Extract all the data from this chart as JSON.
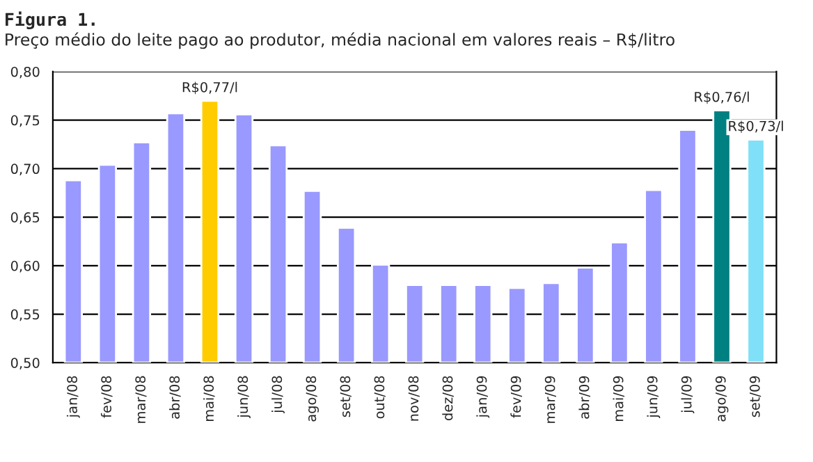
{
  "chart_data": {
    "type": "bar",
    "title": "Figura 1.",
    "subtitle": "Preço médio do leite pago ao produtor, média nacional em valores reais – R$/litro",
    "categories": [
      "jan/08",
      "fev/08",
      "mar/08",
      "abr/08",
      "mai/08",
      "jun/08",
      "jul/08",
      "ago/08",
      "set/08",
      "out/08",
      "nov/08",
      "dez/08",
      "jan/09",
      "fev/09",
      "mar/09",
      "abr/09",
      "mai/09",
      "jun/09",
      "jul/09",
      "ago/09",
      "set/09"
    ],
    "values": [
      0.688,
      0.704,
      0.727,
      0.757,
      0.77,
      0.756,
      0.724,
      0.677,
      0.639,
      0.601,
      0.58,
      0.58,
      0.58,
      0.577,
      0.582,
      0.598,
      0.624,
      0.678,
      0.74,
      0.76,
      0.73
    ],
    "colors": [
      "#9999ff",
      "#9999ff",
      "#9999ff",
      "#9999ff",
      "#ffcc00",
      "#9999ff",
      "#9999ff",
      "#9999ff",
      "#9999ff",
      "#9999ff",
      "#9999ff",
      "#9999ff",
      "#9999ff",
      "#9999ff",
      "#9999ff",
      "#9999ff",
      "#9999ff",
      "#9999ff",
      "#9999ff",
      "#008080",
      "#80e0f8"
    ],
    "value_labels": [
      null,
      null,
      null,
      null,
      "R$0,77/l",
      null,
      null,
      null,
      null,
      null,
      null,
      null,
      null,
      null,
      null,
      null,
      null,
      null,
      null,
      "R$0,76/l",
      "R$0,73/l"
    ],
    "ylim": [
      0.5,
      0.8
    ],
    "yticks": [
      {
        "value": 0.5,
        "label": "0,50"
      },
      {
        "value": 0.55,
        "label": "0,55"
      },
      {
        "value": 0.6,
        "label": "0,60"
      },
      {
        "value": 0.65,
        "label": "0,65"
      },
      {
        "value": 0.7,
        "label": "0,70"
      },
      {
        "value": 0.75,
        "label": "0,75"
      },
      {
        "value": 0.8,
        "label": "0,80"
      }
    ],
    "grid": "y",
    "legend": false
  }
}
